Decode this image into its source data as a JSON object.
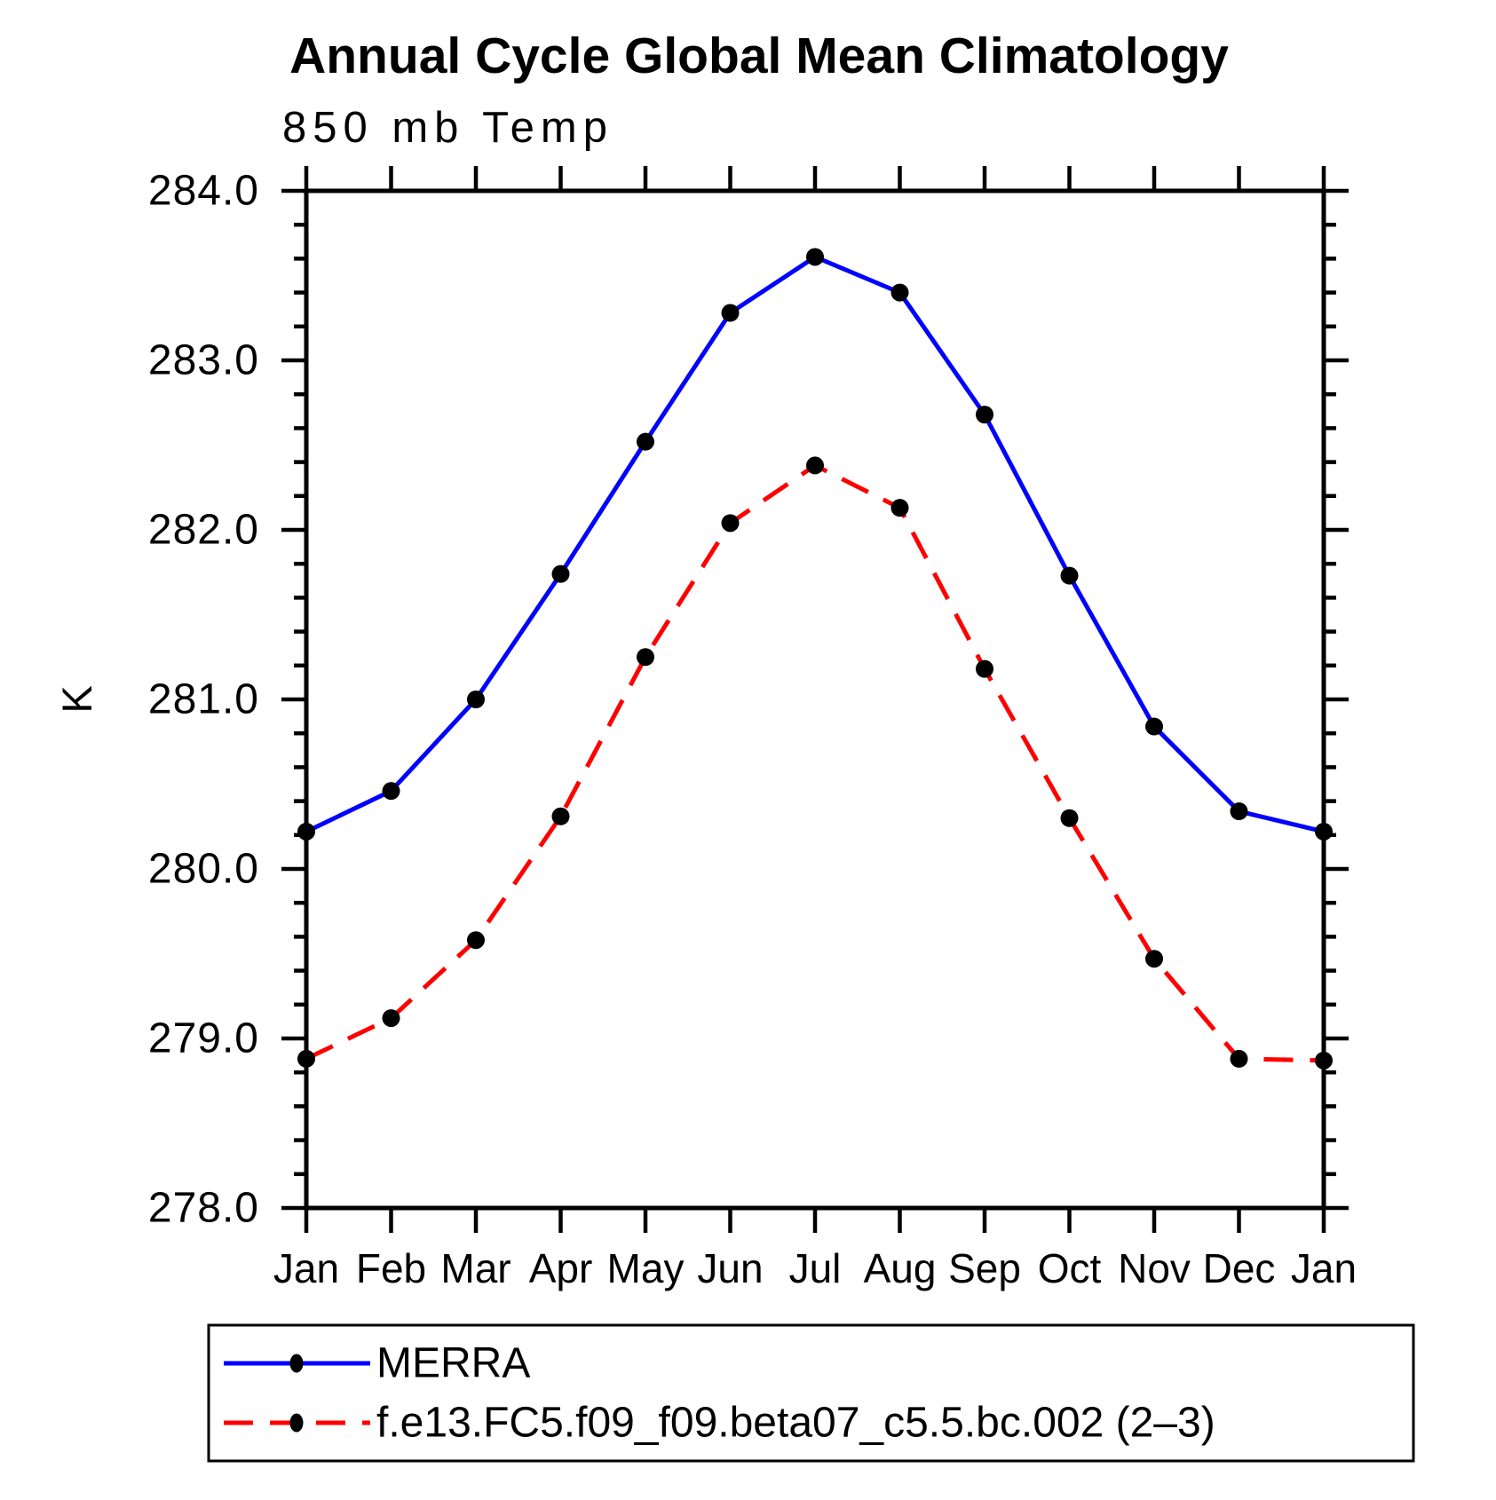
{
  "title": "Annual Cycle Global Mean Climatology",
  "subtitle": "850 mb Temp",
  "y_axis_label": "K",
  "colors": {
    "background": "#ffffff",
    "axis": "#000000",
    "marker": "#000000",
    "merra_line": "#0000ff",
    "model_line": "#ff0000"
  },
  "chart_data": {
    "type": "line",
    "categories": [
      "Jan",
      "Feb",
      "Mar",
      "Apr",
      "May",
      "Jun",
      "Jul",
      "Aug",
      "Sep",
      "Oct",
      "Nov",
      "Dec",
      "Jan"
    ],
    "series": [
      {
        "name": "MERRA",
        "color": "#0000ff",
        "line_style": "solid",
        "marker": "filled-circle",
        "marker_color": "#000000",
        "values": [
          280.22,
          280.46,
          281.0,
          281.74,
          282.52,
          283.28,
          283.61,
          283.4,
          282.68,
          281.73,
          280.84,
          280.34,
          280.22
        ]
      },
      {
        "name": "f.e13.FC5.f09_f09.beta07_c5.5.bc.002 (2–3)",
        "color": "#ff0000",
        "line_style": "dashed",
        "marker": "filled-circle",
        "marker_color": "#000000",
        "values": [
          278.88,
          279.12,
          279.58,
          280.31,
          281.25,
          282.04,
          282.38,
          282.13,
          281.18,
          280.3,
          279.47,
          278.88,
          278.87
        ]
      }
    ],
    "xlabel": "",
    "ylabel": "K",
    "ylim": [
      278.0,
      284.0
    ],
    "ytick_major": 1.0,
    "ytick_minor": 0.2,
    "ytick_labels": [
      "278.0",
      "279.0",
      "280.0",
      "281.0",
      "282.0",
      "283.0",
      "284.0"
    ],
    "grid": false,
    "legend_position": "bottom"
  }
}
